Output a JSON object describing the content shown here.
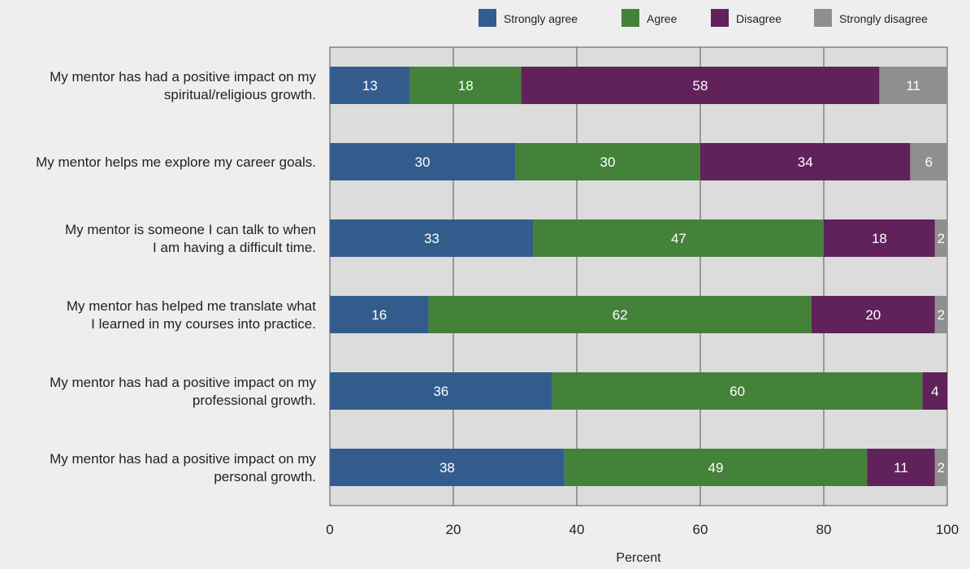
{
  "chart_data": {
    "type": "bar",
    "orientation": "horizontal",
    "stacked": true,
    "title": "",
    "xlabel": "Percent",
    "ylabel": "",
    "xlim": [
      0,
      100
    ],
    "xticks": [
      0,
      20,
      40,
      60,
      80,
      100
    ],
    "grid": true,
    "legend_position": "top-right",
    "categories": [
      [
        "My mentor has had a positive impact on my",
        "spiritual/religious growth."
      ],
      [
        "My mentor helps me explore my career goals."
      ],
      [
        "My mentor is someone I can talk to when",
        "I am having a difficult time."
      ],
      [
        "My mentor has helped me translate what",
        "I learned in my courses into practice."
      ],
      [
        "My mentor has had a positive impact on my",
        "professional growth."
      ],
      [
        "My mentor has had a positive impact on my",
        "personal growth."
      ]
    ],
    "series": [
      {
        "name": "Strongly agree",
        "color": "#335c8d",
        "values": [
          13,
          30,
          33,
          16,
          36,
          38
        ]
      },
      {
        "name": "Agree",
        "color": "#44823a",
        "values": [
          18,
          30,
          47,
          62,
          60,
          49
        ]
      },
      {
        "name": "Disagree",
        "color": "#61225b",
        "values": [
          58,
          34,
          18,
          20,
          4,
          11
        ]
      },
      {
        "name": "Strongly disagree",
        "color": "#8f8f8f",
        "values": [
          11,
          6,
          2,
          2,
          0,
          2
        ]
      }
    ]
  }
}
